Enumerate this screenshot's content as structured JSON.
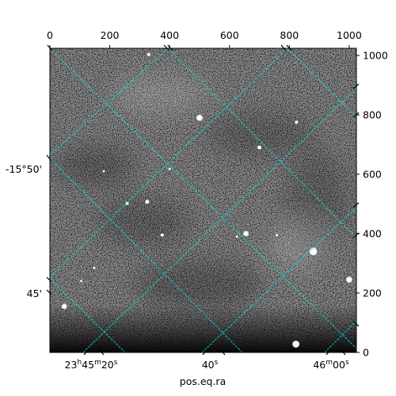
{
  "chart_data": {
    "type": "image",
    "colormap": "grayscale",
    "pixel_axes": {
      "x": {
        "range": [
          0,
          1024
        ],
        "ticks": [
          0,
          200,
          400,
          600,
          800,
          1000
        ]
      },
      "y": {
        "range": [
          0,
          1024
        ],
        "ticks": [
          0,
          200,
          400,
          600,
          800,
          1000
        ]
      }
    },
    "world_axes": {
      "xlabel": "pos.eq.ra",
      "ra_tick_labels": [
        "23h45m20s",
        "40s",
        "46m00s"
      ],
      "dec_tick_labels": [
        "-15°50'",
        "45'"
      ]
    },
    "grid_color": "#00e5e5",
    "grid": true,
    "stars": [
      {
        "x": 330,
        "y": 1003,
        "size": 4
      },
      {
        "x": 500,
        "y": 790,
        "size": 7
      },
      {
        "x": 824,
        "y": 775,
        "size": 4
      },
      {
        "x": 700,
        "y": 690,
        "size": 5
      },
      {
        "x": 400,
        "y": 618,
        "size": 3
      },
      {
        "x": 258,
        "y": 502,
        "size": 4
      },
      {
        "x": 325,
        "y": 507,
        "size": 5
      },
      {
        "x": 375,
        "y": 395,
        "size": 4
      },
      {
        "x": 655,
        "y": 400,
        "size": 6
      },
      {
        "x": 758,
        "y": 395,
        "size": 3
      },
      {
        "x": 880,
        "y": 340,
        "size": 9
      },
      {
        "x": 1000,
        "y": 245,
        "size": 7
      },
      {
        "x": 105,
        "y": 240,
        "size": 3
      },
      {
        "x": 148,
        "y": 285,
        "size": 3
      },
      {
        "x": 48,
        "y": 155,
        "size": 6
      },
      {
        "x": 822,
        "y": 28,
        "size": 8
      },
      {
        "x": 625,
        "y": 390,
        "size": 3
      },
      {
        "x": 180,
        "y": 610,
        "size": 3
      }
    ]
  }
}
